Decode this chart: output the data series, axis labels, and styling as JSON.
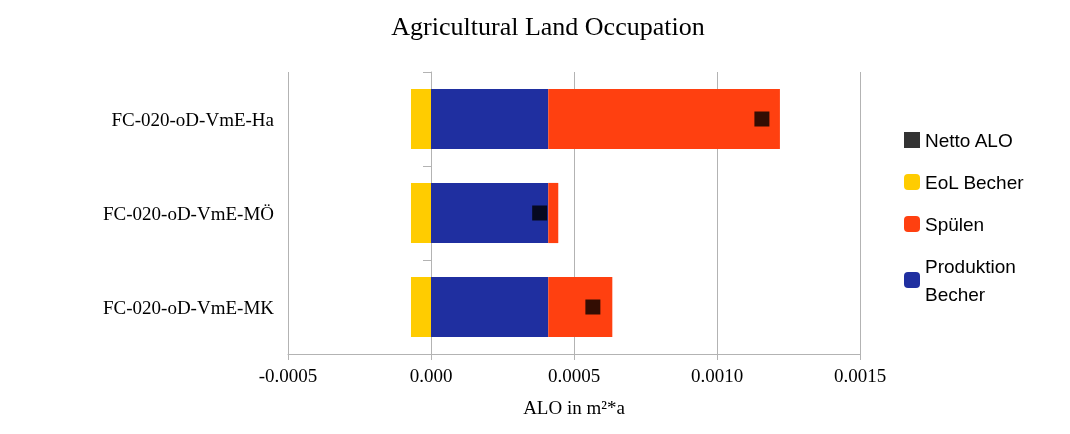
{
  "chart_data": {
    "type": "bar",
    "title": "Agricultural Land Occupation",
    "xlabel": "ALO in m²*a",
    "orientation": "horizontal",
    "stacked": true,
    "categories": [
      "FC-020-oD-VmE-Ha",
      "FC-020-oD-VmE-MÖ",
      "FC-020-oD-VmE-MK"
    ],
    "series": [
      {
        "name": "Produktion Becher",
        "color": "#1f2fa0",
        "values": [
          0.00041,
          0.00041,
          0.00041
        ]
      },
      {
        "name": "Spülen",
        "color": "#ff4010",
        "values": [
          0.00081,
          3.5e-05,
          0.000224
        ]
      },
      {
        "name": "EoL Becher",
        "color": "#ffcc00",
        "values": [
          -7e-05,
          -7e-05,
          -7e-05
        ]
      },
      {
        "name": "Netto ALO",
        "type": "scatter",
        "marker": "square",
        "color": "#000000",
        "values": [
          0.001157,
          0.00038,
          0.000566
        ]
      }
    ],
    "xlim": [
      -0.0005,
      0.0015
    ],
    "xticks": [
      {
        "value": -0.0005,
        "label": "-0.0005"
      },
      {
        "value": 0,
        "label": "0.000"
      },
      {
        "value": 0.0005,
        "label": "0.0005"
      },
      {
        "value": 0.001,
        "label": "0.0010"
      },
      {
        "value": 0.0015,
        "label": "0.0015"
      }
    ],
    "grid": "x",
    "legend": "right"
  }
}
